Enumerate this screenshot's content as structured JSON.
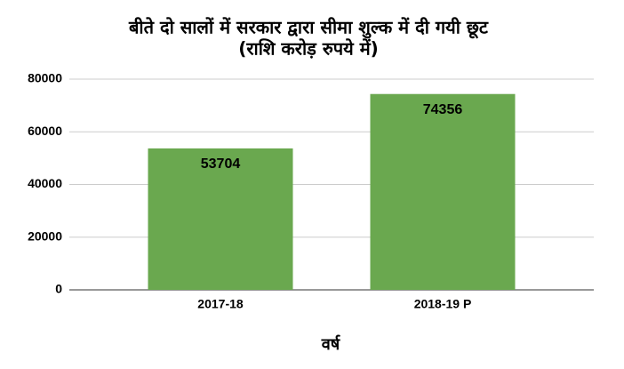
{
  "chart_data": {
    "type": "bar",
    "title": "बीते दो सालों में सरकार द्वारा सीमा शुल्क में दी गयी छूट",
    "subtitle": "(राशि करोड़ रुपये में)",
    "x_label": "वर्ष",
    "categories": [
      "2017-18",
      "2018-19 P"
    ],
    "values": [
      53704,
      74356
    ],
    "color": "#6aa84f",
    "ylim": [
      0,
      80000
    ],
    "yticks": [
      0,
      20000,
      40000,
      60000,
      80000
    ],
    "grid": true
  }
}
